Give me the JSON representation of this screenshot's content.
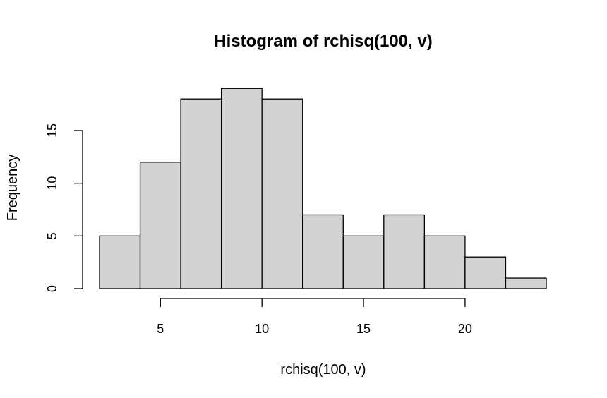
{
  "chart_data": {
    "type": "bar",
    "title": "Histogram of rchisq(100, v)",
    "xlabel": "rchisq(100, v)",
    "ylabel": "Frequency",
    "bin_edges": [
      2,
      4,
      6,
      8,
      10,
      12,
      14,
      16,
      18,
      20,
      22,
      24
    ],
    "values": [
      5,
      12,
      18,
      19,
      18,
      7,
      5,
      7,
      5,
      3,
      1
    ],
    "x_ticks": [
      5,
      10,
      15,
      20
    ],
    "y_ticks": [
      0,
      5,
      10,
      15
    ],
    "xlim": [
      2,
      24
    ],
    "ylim": [
      0,
      19
    ],
    "grid": false,
    "colors": {
      "bar_fill": "#d3d3d3",
      "bar_stroke": "#000000"
    }
  }
}
